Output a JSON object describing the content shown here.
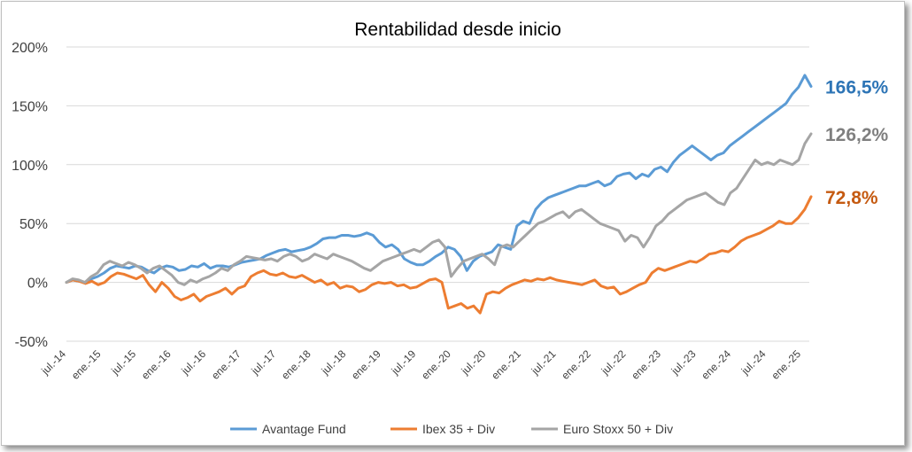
{
  "chart_data": {
    "type": "line",
    "title": "Rentabilidad desde inicio",
    "xlabel": "",
    "ylabel": "",
    "ylim": [
      -50,
      200
    ],
    "y_ticks": [
      "-50%",
      "0%",
      "50%",
      "100%",
      "150%",
      "200%"
    ],
    "y_tick_values": [
      -50,
      0,
      50,
      100,
      150,
      200
    ],
    "x_tick_labels": [
      "jul.-14",
      "ene.-15",
      "jul.-15",
      "ene.-16",
      "jul.-16",
      "ene.-17",
      "jul.-17",
      "ene.-18",
      "jul.-18",
      "ene.-19",
      "jul.-19",
      "ene.-20",
      "jul.-20",
      "ene.-21",
      "jul.-21",
      "ene.-22",
      "jul.-22",
      "ene.-23",
      "jul.-23",
      "ene.-24",
      "jul.-24",
      "ene.-25"
    ],
    "grid": "horizontal",
    "legend_position": "bottom",
    "series": [
      {
        "name": "Avantage Fund",
        "color": "#5b9bd5",
        "end_label": "166,5%",
        "end_label_color": "#2e75b6",
        "values": [
          0,
          2,
          1,
          0,
          3,
          5,
          8,
          12,
          14,
          13,
          12,
          14,
          13,
          10,
          8,
          12,
          14,
          13,
          10,
          11,
          14,
          13,
          16,
          12,
          14,
          14,
          13,
          15,
          17,
          18,
          19,
          20,
          23,
          25,
          27,
          28,
          26,
          27,
          28,
          30,
          33,
          37,
          38,
          38,
          40,
          40,
          39,
          40,
          42,
          40,
          34,
          30,
          32,
          28,
          20,
          17,
          15,
          15,
          18,
          22,
          25,
          30,
          28,
          22,
          10,
          18,
          22,
          24,
          26,
          32,
          30,
          28,
          48,
          52,
          50,
          62,
          68,
          72,
          74,
          76,
          78,
          80,
          82,
          82,
          84,
          86,
          82,
          84,
          90,
          92,
          93,
          88,
          92,
          90,
          96,
          98,
          94,
          102,
          108,
          112,
          116,
          112,
          108,
          104,
          108,
          110,
          116,
          120,
          124,
          128,
          132,
          136,
          140,
          144,
          148,
          152,
          160,
          166,
          176,
          166.5
        ]
      },
      {
        "name": "Ibex 35 + Div",
        "color": "#ed7d31",
        "end_label": "72,8%",
        "end_label_color": "#c55a11",
        "values": [
          0,
          2,
          1,
          -1,
          1,
          -2,
          0,
          5,
          8,
          7,
          5,
          3,
          6,
          -2,
          -8,
          0,
          -5,
          -12,
          -15,
          -13,
          -10,
          -16,
          -12,
          -10,
          -8,
          -5,
          -10,
          -5,
          -3,
          5,
          8,
          10,
          7,
          6,
          8,
          5,
          4,
          6,
          3,
          0,
          2,
          -2,
          0,
          -5,
          -3,
          -4,
          -8,
          -6,
          -2,
          0,
          -1,
          0,
          -3,
          -2,
          -5,
          -4,
          -1,
          2,
          3,
          0,
          -22,
          -20,
          -18,
          -22,
          -20,
          -26,
          -10,
          -8,
          -9,
          -5,
          -2,
          0,
          2,
          1,
          3,
          2,
          4,
          2,
          1,
          0,
          -1,
          -2,
          0,
          2,
          -3,
          -5,
          -4,
          -10,
          -8,
          -5,
          -2,
          0,
          8,
          12,
          10,
          12,
          14,
          16,
          18,
          17,
          20,
          24,
          25,
          27,
          26,
          30,
          35,
          38,
          40,
          42,
          45,
          48,
          52,
          50,
          50,
          55,
          62,
          72.8
        ]
      },
      {
        "name": "Euro Stoxx 50 + Div",
        "color": "#a5a5a5",
        "end_label": "126,2%",
        "end_label_color": "#7f7f7f",
        "values": [
          0,
          3,
          2,
          0,
          5,
          8,
          15,
          18,
          16,
          14,
          17,
          15,
          12,
          8,
          12,
          14,
          10,
          6,
          0,
          -2,
          2,
          0,
          3,
          5,
          8,
          12,
          10,
          15,
          18,
          22,
          21,
          20,
          19,
          20,
          18,
          22,
          24,
          22,
          18,
          20,
          24,
          22,
          20,
          24,
          22,
          20,
          18,
          15,
          12,
          10,
          14,
          18,
          20,
          22,
          24,
          26,
          28,
          26,
          30,
          34,
          36,
          30,
          5,
          12,
          18,
          20,
          22,
          24,
          20,
          15,
          30,
          32,
          30,
          35,
          40,
          45,
          50,
          52,
          55,
          58,
          60,
          55,
          60,
          62,
          58,
          54,
          50,
          48,
          46,
          44,
          35,
          40,
          38,
          30,
          38,
          48,
          52,
          58,
          62,
          66,
          70,
          72,
          74,
          76,
          72,
          68,
          66,
          76,
          80,
          88,
          96,
          104,
          100,
          102,
          100,
          104,
          102,
          100,
          104,
          118,
          126.2
        ]
      }
    ]
  }
}
